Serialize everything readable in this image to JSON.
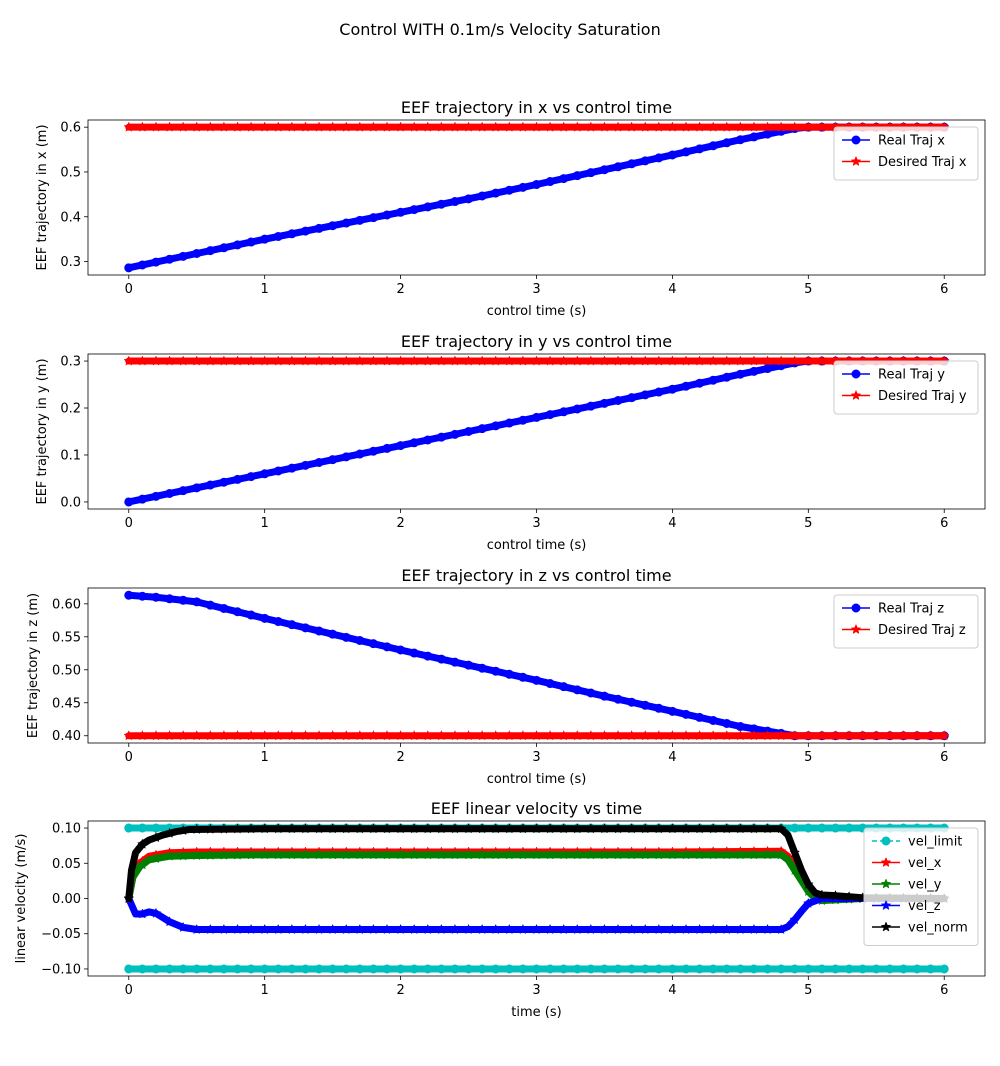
{
  "figure": {
    "suptitle": "Control WITH 0.1m/s Velocity Saturation"
  },
  "chart_data": [
    {
      "type": "line",
      "title": "EEF trajectory in x vs control time",
      "xlabel": "control time (s)",
      "ylabel": "EEF trajectory in x (m)",
      "xlim": [
        -0.3,
        6.3
      ],
      "ylim": [
        0.27,
        0.616
      ],
      "xticks": [
        0,
        1,
        2,
        3,
        4,
        5,
        6
      ],
      "yticks": [
        0.3,
        0.4,
        0.5,
        0.6
      ],
      "ytick_labels": [
        "0.3",
        "0.4",
        "0.5",
        "0.6"
      ],
      "legend_position": "upper-right",
      "series": [
        {
          "name": "Real Traj x",
          "color": "#0000ff",
          "marker": "circle",
          "linestyle": "solid",
          "x": [
            0,
            0.5,
            1,
            1.5,
            2,
            2.5,
            3,
            3.5,
            4,
            4.5,
            4.9,
            5.0,
            5.5,
            6
          ],
          "y": [
            0.286,
            0.318,
            0.35,
            0.38,
            0.41,
            0.44,
            0.472,
            0.505,
            0.538,
            0.572,
            0.597,
            0.6,
            0.6,
            0.6
          ]
        },
        {
          "name": "Desired Traj x",
          "color": "#ff0000",
          "marker": "star",
          "linestyle": "solid",
          "x": [
            0,
            6
          ],
          "y": [
            0.6,
            0.6
          ]
        }
      ]
    },
    {
      "type": "line",
      "title": "EEF trajectory in y vs control time",
      "xlabel": "control time (s)",
      "ylabel": "EEF trajectory in y (m)",
      "xlim": [
        -0.3,
        6.3
      ],
      "ylim": [
        -0.015,
        0.315
      ],
      "xticks": [
        0,
        1,
        2,
        3,
        4,
        5,
        6
      ],
      "yticks": [
        0.0,
        0.1,
        0.2,
        0.3
      ],
      "ytick_labels": [
        "0.0",
        "0.1",
        "0.2",
        "0.3"
      ],
      "legend_position": "upper-right",
      "series": [
        {
          "name": "Real Traj y",
          "color": "#0000ff",
          "marker": "circle",
          "linestyle": "solid",
          "x": [
            0,
            0.5,
            1,
            1.5,
            2,
            2.5,
            3,
            3.5,
            4,
            4.5,
            4.9,
            5.0,
            5.5,
            6
          ],
          "y": [
            0.0,
            0.03,
            0.06,
            0.09,
            0.12,
            0.15,
            0.18,
            0.21,
            0.24,
            0.272,
            0.296,
            0.3,
            0.3,
            0.3
          ]
        },
        {
          "name": "Desired Traj y",
          "color": "#ff0000",
          "marker": "star",
          "linestyle": "solid",
          "x": [
            0,
            6
          ],
          "y": [
            0.3,
            0.3
          ]
        }
      ]
    },
    {
      "type": "line",
      "title": "EEF trajectory in z vs control time",
      "xlabel": "control time (s)",
      "ylabel": "EEF trajectory in z (m)",
      "xlim": [
        -0.3,
        6.3
      ],
      "ylim": [
        0.389,
        0.624
      ],
      "xticks": [
        0,
        1,
        2,
        3,
        4,
        5,
        6
      ],
      "yticks": [
        0.4,
        0.45,
        0.5,
        0.55,
        0.6
      ],
      "ytick_labels": [
        "0.40",
        "0.45",
        "0.50",
        "0.55",
        "0.60"
      ],
      "legend_position": "upper-right",
      "series": [
        {
          "name": "Real Traj z",
          "color": "#0000ff",
          "marker": "circle",
          "linestyle": "solid",
          "x": [
            0,
            0.2,
            0.5,
            1,
            1.5,
            2,
            2.5,
            3,
            3.5,
            4,
            4.5,
            4.9,
            5.0,
            5.5,
            6
          ],
          "y": [
            0.613,
            0.61,
            0.603,
            0.578,
            0.554,
            0.53,
            0.507,
            0.484,
            0.46,
            0.437,
            0.414,
            0.4,
            0.4,
            0.4,
            0.4
          ]
        },
        {
          "name": "Desired Traj z",
          "color": "#ff0000",
          "marker": "star",
          "linestyle": "solid",
          "x": [
            0,
            6
          ],
          "y": [
            0.4,
            0.4
          ]
        }
      ]
    },
    {
      "type": "line",
      "title": "EEF linear velocity vs time",
      "xlabel": "time (s)",
      "ylabel": "linear velocity (m/s)",
      "xlim": [
        -0.3,
        6.3
      ],
      "ylim": [
        -0.11,
        0.11
      ],
      "xticks": [
        0,
        1,
        2,
        3,
        4,
        5,
        6
      ],
      "yticks": [
        -0.1,
        -0.05,
        0.0,
        0.05,
        0.1
      ],
      "ytick_labels": [
        "−0.10",
        "−0.05",
        "0.00",
        "0.05",
        "0.10"
      ],
      "legend_position": "upper-right",
      "series": [
        {
          "name": "vel_limit",
          "color": "#00bfbf",
          "marker": "circle",
          "linestyle": "dashed",
          "x": [
            0,
            6
          ],
          "y": [
            0.1,
            0.1
          ]
        },
        {
          "name": "",
          "color": "#00bfbf",
          "marker": "circle",
          "linestyle": "dashed",
          "x": [
            0,
            6
          ],
          "y": [
            -0.1,
            -0.1
          ]
        },
        {
          "name": "vel_x",
          "color": "#ff0000",
          "marker": "star",
          "linestyle": "solid",
          "x": [
            0,
            0.03,
            0.08,
            0.15,
            0.3,
            0.5,
            1,
            2,
            3,
            4,
            4.8,
            4.85,
            4.9,
            4.95,
            5.0,
            5.05,
            5.1,
            5.2,
            5.4,
            6
          ],
          "y": [
            0,
            0.03,
            0.05,
            0.06,
            0.065,
            0.066,
            0.066,
            0.066,
            0.066,
            0.066,
            0.067,
            0.06,
            0.045,
            0.03,
            0.015,
            0.005,
            0.0,
            0.0,
            0.0,
            0.0
          ]
        },
        {
          "name": "vel_y",
          "color": "#008000",
          "marker": "star",
          "linestyle": "solid",
          "x": [
            0,
            0.03,
            0.08,
            0.15,
            0.3,
            0.5,
            1,
            2,
            3,
            4,
            4.8,
            4.85,
            4.9,
            4.95,
            5.0,
            5.05,
            5.1,
            5.2,
            5.4,
            6
          ],
          "y": [
            0,
            0.03,
            0.045,
            0.055,
            0.06,
            0.061,
            0.062,
            0.062,
            0.062,
            0.062,
            0.062,
            0.055,
            0.04,
            0.025,
            0.01,
            0.0,
            -0.003,
            -0.002,
            0.0,
            0.0
          ]
        },
        {
          "name": "vel_z",
          "color": "#0000ff",
          "marker": "star",
          "linestyle": "solid",
          "x": [
            0,
            0.05,
            0.1,
            0.15,
            0.2,
            0.3,
            0.4,
            0.5,
            1,
            2,
            3,
            4,
            4.8,
            4.85,
            4.9,
            4.95,
            5.0,
            5.1,
            5.4,
            6
          ],
          "y": [
            0,
            -0.022,
            -0.022,
            -0.019,
            -0.021,
            -0.033,
            -0.041,
            -0.044,
            -0.044,
            -0.044,
            -0.044,
            -0.044,
            -0.044,
            -0.04,
            -0.03,
            -0.018,
            -0.007,
            0.0,
            0.0,
            0.0
          ]
        },
        {
          "name": "vel_norm",
          "color": "#000000",
          "marker": "star",
          "linestyle": "solid",
          "x": [
            0,
            0.02,
            0.05,
            0.1,
            0.15,
            0.25,
            0.35,
            0.45,
            1,
            2,
            3,
            4,
            4.8,
            4.85,
            4.9,
            4.95,
            5.0,
            5.05,
            5.1,
            5.2,
            5.4,
            6
          ],
          "y": [
            0,
            0.04,
            0.065,
            0.077,
            0.083,
            0.09,
            0.095,
            0.098,
            0.099,
            0.099,
            0.099,
            0.099,
            0.099,
            0.09,
            0.065,
            0.04,
            0.02,
            0.008,
            0.005,
            0.004,
            0.001,
            0.0
          ]
        }
      ]
    }
  ]
}
